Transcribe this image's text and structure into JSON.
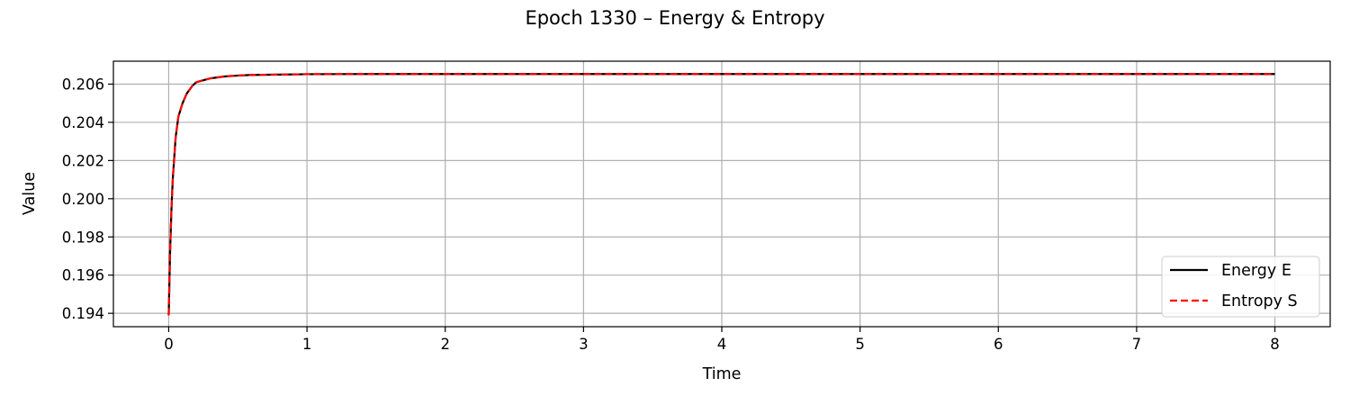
{
  "chart_data": {
    "type": "line",
    "title": "Epoch 1330 – Energy & Entropy",
    "xlabel": "Time",
    "ylabel": "Value",
    "xlim": [
      -0.4,
      8.4
    ],
    "ylim": [
      0.1933,
      0.2072
    ],
    "xticks": [
      0,
      1,
      2,
      3,
      4,
      5,
      6,
      7,
      8
    ],
    "xtick_labels": [
      "0",
      "1",
      "2",
      "3",
      "4",
      "5",
      "6",
      "7",
      "8"
    ],
    "yticks": [
      0.194,
      0.196,
      0.198,
      0.2,
      0.202,
      0.204,
      0.206
    ],
    "ytick_labels": [
      "0.194",
      "0.196",
      "0.198",
      "0.200",
      "0.202",
      "0.204",
      "0.206"
    ],
    "grid": true,
    "legend_position": "lower-right",
    "x": [
      0.0,
      0.01,
      0.02,
      0.03,
      0.05,
      0.07,
      0.1,
      0.13,
      0.17,
      0.2,
      0.25,
      0.3,
      0.4,
      0.5,
      0.6,
      0.8,
      1.0,
      1.5,
      2.0,
      3.0,
      4.0,
      5.0,
      6.0,
      7.0,
      8.0
    ],
    "series": [
      {
        "name": "Energy E",
        "color": "#000000",
        "style": "solid",
        "values": [
          0.1939,
          0.1972,
          0.1995,
          0.2011,
          0.2032,
          0.2043,
          0.205,
          0.2055,
          0.2059,
          0.2061,
          0.2062,
          0.2063,
          0.2064,
          0.20645,
          0.20648,
          0.2065,
          0.20652,
          0.20653,
          0.20653,
          0.20653,
          0.20653,
          0.20653,
          0.20653,
          0.20653,
          0.20653
        ]
      },
      {
        "name": "Entropy S",
        "color": "#ff0000",
        "style": "dashed",
        "values": [
          0.1939,
          0.1972,
          0.1995,
          0.2011,
          0.2032,
          0.2043,
          0.205,
          0.2055,
          0.2059,
          0.2061,
          0.2062,
          0.2063,
          0.2064,
          0.20645,
          0.20648,
          0.2065,
          0.20652,
          0.20653,
          0.20653,
          0.20653,
          0.20653,
          0.20653,
          0.20653,
          0.20653,
          0.20653
        ]
      }
    ]
  }
}
